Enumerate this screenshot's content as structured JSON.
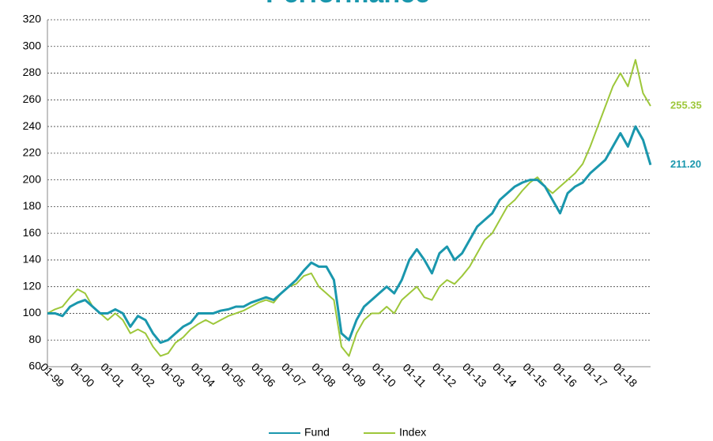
{
  "chart_data": {
    "type": "line",
    "title": "Performance",
    "categories": [
      "01-99",
      null,
      null,
      null,
      "01-00",
      null,
      null,
      null,
      "01-01",
      null,
      null,
      null,
      "01-02",
      null,
      null,
      null,
      "01-03",
      null,
      null,
      null,
      "01-04",
      null,
      null,
      null,
      "01-05",
      null,
      null,
      null,
      "01-06",
      null,
      null,
      null,
      "01-07",
      null,
      null,
      null,
      "01-08",
      null,
      null,
      null,
      "01-09",
      null,
      null,
      null,
      "01-10",
      null,
      null,
      null,
      "01-11",
      null,
      null,
      null,
      "01-12",
      null,
      null,
      null,
      "01-13",
      null,
      null,
      null,
      "01-14",
      null,
      null,
      null,
      "01-15",
      null,
      null,
      null,
      "01-16",
      null,
      null,
      null,
      "01-17",
      null,
      null,
      null,
      "01-18",
      null,
      null,
      null,
      null
    ],
    "series": [
      {
        "name": "Fund",
        "color": "#1a97ad",
        "values": [
          100,
          100,
          98,
          105,
          108,
          110,
          105,
          100,
          100,
          103,
          100,
          90,
          98,
          95,
          85,
          78,
          80,
          85,
          90,
          93,
          100,
          100,
          100,
          102,
          103,
          105,
          105,
          108,
          110,
          112,
          110,
          115,
          120,
          125,
          132,
          138,
          135,
          135,
          125,
          85,
          80,
          95,
          105,
          110,
          115,
          120,
          115,
          125,
          140,
          148,
          140,
          130,
          145,
          150,
          140,
          145,
          155,
          165,
          170,
          175,
          185,
          190,
          195,
          198,
          200,
          200,
          195,
          185,
          175,
          190,
          195,
          198,
          205,
          210,
          215,
          225,
          235,
          225,
          240,
          230,
          211.2
        ],
        "value_labels": [
          null,
          null,
          null,
          null,
          null,
          null,
          null,
          null,
          null,
          null,
          null,
          null,
          null,
          null,
          null,
          null,
          null,
          null,
          null,
          null,
          null,
          null,
          null,
          null,
          null,
          null,
          null,
          null,
          null,
          null,
          null,
          null,
          null,
          null,
          null,
          null,
          null,
          null,
          null,
          null,
          null,
          null,
          null,
          null,
          null,
          null,
          null,
          null,
          null,
          null,
          null,
          null,
          null,
          null,
          null,
          null,
          null,
          null,
          null,
          null,
          null,
          null,
          null,
          null,
          null,
          null,
          null,
          null,
          null,
          null,
          null,
          null,
          null,
          null,
          null,
          null,
          null,
          null,
          null,
          null,
          "211.20"
        ]
      },
      {
        "name": "Index",
        "color": "#9dc73a",
        "values": [
          100,
          103,
          105,
          112,
          118,
          115,
          105,
          100,
          95,
          100,
          95,
          85,
          88,
          85,
          75,
          68,
          70,
          78,
          82,
          88,
          92,
          95,
          92,
          95,
          98,
          100,
          102,
          105,
          108,
          110,
          108,
          115,
          120,
          122,
          128,
          130,
          120,
          115,
          110,
          75,
          68,
          85,
          95,
          100,
          100,
          105,
          100,
          110,
          115,
          120,
          112,
          110,
          120,
          125,
          122,
          128,
          135,
          145,
          155,
          160,
          170,
          180,
          185,
          192,
          198,
          202,
          195,
          190,
          195,
          200,
          205,
          212,
          225,
          240,
          255,
          270,
          280,
          270,
          290,
          265,
          255.35
        ],
        "value_labels": [
          null,
          null,
          null,
          null,
          null,
          null,
          null,
          null,
          null,
          null,
          null,
          null,
          null,
          null,
          null,
          null,
          null,
          null,
          null,
          null,
          null,
          null,
          null,
          null,
          null,
          null,
          null,
          null,
          null,
          null,
          null,
          null,
          null,
          null,
          null,
          null,
          null,
          null,
          null,
          null,
          null,
          null,
          null,
          null,
          null,
          null,
          null,
          null,
          null,
          null,
          null,
          null,
          null,
          null,
          null,
          null,
          null,
          null,
          null,
          null,
          null,
          null,
          null,
          null,
          null,
          null,
          null,
          null,
          null,
          null,
          null,
          null,
          null,
          null,
          null,
          null,
          null,
          null,
          null,
          null,
          "255.35"
        ]
      }
    ],
    "ylim": [
      60,
      320
    ],
    "yticks": [
      60,
      80,
      100,
      120,
      140,
      160,
      180,
      200,
      220,
      240,
      260,
      280,
      300,
      320
    ],
    "grid": true,
    "legend": "bottom"
  }
}
